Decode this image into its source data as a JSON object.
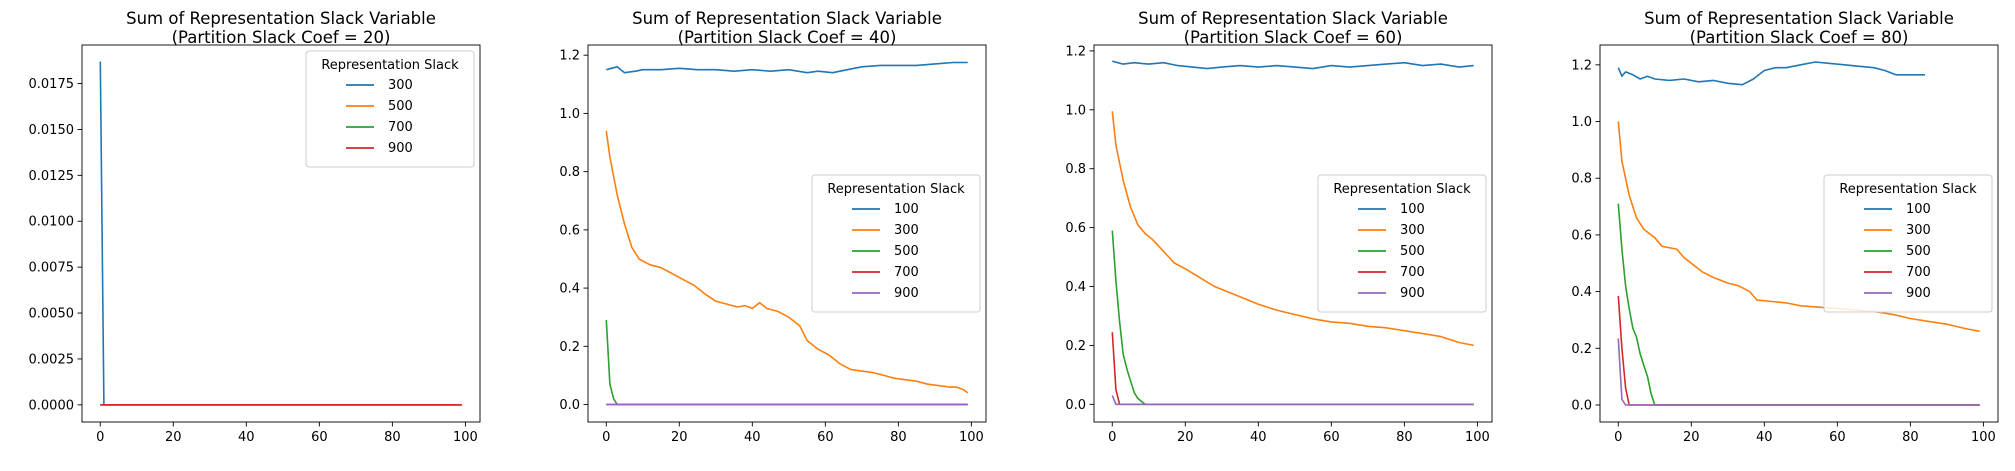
{
  "chart_data": [
    {
      "type": "line",
      "title": "Sum of Representation Slack Variable",
      "subtitle": "(Partition Slack Coef = 20)",
      "xlim": [
        -5,
        104
      ],
      "ylim": [
        -0.000935,
        0.0196
      ],
      "xticks": [
        0,
        20,
        40,
        60,
        80,
        100
      ],
      "yticks": [
        0.0,
        0.0025,
        0.005,
        0.0075,
        0.01,
        0.0125,
        0.015,
        0.0175
      ],
      "ytick_labels": [
        "0.0000",
        "0.0025",
        "0.0050",
        "0.0075",
        "0.0100",
        "0.0125",
        "0.0150",
        "0.0175"
      ],
      "legend": {
        "title": "Representation Slack",
        "position": "upper-right"
      },
      "series": [
        {
          "name": "300",
          "color": "#1f77b4",
          "points": [
            [
              0,
              0.0187
            ],
            [
              1,
              0.0
            ],
            [
              99,
              0.0
            ]
          ]
        },
        {
          "name": "500",
          "color": "#ff7f0e",
          "points": [
            [
              0,
              0.0
            ],
            [
              99,
              0.0
            ]
          ]
        },
        {
          "name": "700",
          "color": "#2ca02c",
          "points": [
            [
              0,
              0.0
            ],
            [
              99,
              0.0
            ]
          ]
        },
        {
          "name": "900",
          "color": "#d62728",
          "points": [
            [
              0,
              0.0
            ],
            [
              99,
              0.0
            ]
          ]
        }
      ]
    },
    {
      "type": "line",
      "title": "Sum of Representation Slack Variable",
      "subtitle": "(Partition Slack Coef = 40)",
      "xlim": [
        -5,
        104
      ],
      "ylim": [
        -0.06,
        1.235
      ],
      "xticks": [
        0,
        20,
        40,
        60,
        80,
        100
      ],
      "yticks": [
        0.0,
        0.2,
        0.4,
        0.6,
        0.8,
        1.0,
        1.2
      ],
      "ytick_labels": [
        "0.0",
        "0.2",
        "0.4",
        "0.6",
        "0.8",
        "1.0",
        "1.2"
      ],
      "legend": {
        "title": "Representation Slack",
        "position": "center-right"
      },
      "series": [
        {
          "name": "100",
          "color": "#1f77b4",
          "points": [
            [
              0,
              1.15
            ],
            [
              3,
              1.16
            ],
            [
              5,
              1.14
            ],
            [
              8,
              1.145
            ],
            [
              10,
              1.15
            ],
            [
              15,
              1.15
            ],
            [
              20,
              1.155
            ],
            [
              25,
              1.15
            ],
            [
              30,
              1.15
            ],
            [
              35,
              1.145
            ],
            [
              40,
              1.15
            ],
            [
              45,
              1.145
            ],
            [
              50,
              1.15
            ],
            [
              55,
              1.14
            ],
            [
              58,
              1.145
            ],
            [
              62,
              1.14
            ],
            [
              66,
              1.15
            ],
            [
              70,
              1.16
            ],
            [
              75,
              1.165
            ],
            [
              80,
              1.165
            ],
            [
              85,
              1.165
            ],
            [
              90,
              1.17
            ],
            [
              95,
              1.175
            ],
            [
              99,
              1.175
            ]
          ]
        },
        {
          "name": "300",
          "color": "#ff7f0e",
          "points": [
            [
              0,
              0.94
            ],
            [
              1,
              0.85
            ],
            [
              3,
              0.72
            ],
            [
              5,
              0.62
            ],
            [
              7,
              0.54
            ],
            [
              9,
              0.5
            ],
            [
              12,
              0.48
            ],
            [
              15,
              0.47
            ],
            [
              18,
              0.45
            ],
            [
              21,
              0.43
            ],
            [
              24,
              0.41
            ],
            [
              27,
              0.38
            ],
            [
              30,
              0.355
            ],
            [
              33,
              0.345
            ],
            [
              36,
              0.335
            ],
            [
              38,
              0.34
            ],
            [
              40,
              0.33
            ],
            [
              42,
              0.35
            ],
            [
              44,
              0.33
            ],
            [
              47,
              0.32
            ],
            [
              50,
              0.3
            ],
            [
              53,
              0.27
            ],
            [
              55,
              0.22
            ],
            [
              58,
              0.19
            ],
            [
              61,
              0.17
            ],
            [
              64,
              0.14
            ],
            [
              67,
              0.12
            ],
            [
              70,
              0.115
            ],
            [
              73,
              0.11
            ],
            [
              76,
              0.1
            ],
            [
              79,
              0.09
            ],
            [
              82,
              0.085
            ],
            [
              85,
              0.08
            ],
            [
              88,
              0.07
            ],
            [
              91,
              0.065
            ],
            [
              94,
              0.06
            ],
            [
              96,
              0.06
            ],
            [
              98,
              0.05
            ],
            [
              99,
              0.04
            ]
          ]
        },
        {
          "name": "500",
          "color": "#2ca02c",
          "points": [
            [
              0,
              0.29
            ],
            [
              1,
              0.07
            ],
            [
              2,
              0.02
            ],
            [
              3,
              0.0
            ],
            [
              99,
              0.0
            ]
          ]
        },
        {
          "name": "700",
          "color": "#d62728",
          "points": [
            [
              0,
              0.0
            ],
            [
              99,
              0.0
            ]
          ]
        },
        {
          "name": "900",
          "color": "#9467bd",
          "points": [
            [
              0,
              0.0
            ],
            [
              99,
              0.0
            ]
          ]
        }
      ]
    },
    {
      "type": "line",
      "title": "Sum of Representation Slack Variable",
      "subtitle": "(Partition Slack Coef = 60)",
      "xlim": [
        -5,
        104
      ],
      "ylim": [
        -0.06,
        1.22
      ],
      "xticks": [
        0,
        20,
        40,
        60,
        80,
        100
      ],
      "yticks": [
        0.0,
        0.2,
        0.4,
        0.6,
        0.8,
        1.0,
        1.2
      ],
      "ytick_labels": [
        "0.0",
        "0.2",
        "0.4",
        "0.6",
        "0.8",
        "1.0",
        "1.2"
      ],
      "legend": {
        "title": "Representation Slack",
        "position": "center-right"
      },
      "series": [
        {
          "name": "100",
          "color": "#1f77b4",
          "points": [
            [
              0,
              1.165
            ],
            [
              3,
              1.155
            ],
            [
              6,
              1.16
            ],
            [
              10,
              1.155
            ],
            [
              14,
              1.16
            ],
            [
              18,
              1.15
            ],
            [
              22,
              1.145
            ],
            [
              26,
              1.14
            ],
            [
              30,
              1.145
            ],
            [
              35,
              1.15
            ],
            [
              40,
              1.145
            ],
            [
              45,
              1.15
            ],
            [
              50,
              1.145
            ],
            [
              55,
              1.14
            ],
            [
              60,
              1.15
            ],
            [
              65,
              1.145
            ],
            [
              70,
              1.15
            ],
            [
              75,
              1.155
            ],
            [
              80,
              1.16
            ],
            [
              85,
              1.15
            ],
            [
              90,
              1.155
            ],
            [
              95,
              1.145
            ],
            [
              99,
              1.15
            ]
          ]
        },
        {
          "name": "300",
          "color": "#ff7f0e",
          "points": [
            [
              0,
              0.995
            ],
            [
              1,
              0.88
            ],
            [
              3,
              0.76
            ],
            [
              5,
              0.67
            ],
            [
              7,
              0.61
            ],
            [
              9,
              0.58
            ],
            [
              11,
              0.56
            ],
            [
              14,
              0.52
            ],
            [
              17,
              0.48
            ],
            [
              20,
              0.46
            ],
            [
              24,
              0.43
            ],
            [
              28,
              0.4
            ],
            [
              32,
              0.38
            ],
            [
              36,
              0.36
            ],
            [
              40,
              0.34
            ],
            [
              45,
              0.32
            ],
            [
              50,
              0.305
            ],
            [
              55,
              0.29
            ],
            [
              60,
              0.28
            ],
            [
              65,
              0.275
            ],
            [
              70,
              0.265
            ],
            [
              75,
              0.26
            ],
            [
              80,
              0.25
            ],
            [
              85,
              0.24
            ],
            [
              90,
              0.23
            ],
            [
              95,
              0.21
            ],
            [
              99,
              0.2
            ]
          ]
        },
        {
          "name": "500",
          "color": "#2ca02c",
          "points": [
            [
              0,
              0.59
            ],
            [
              1,
              0.42
            ],
            [
              2,
              0.28
            ],
            [
              3,
              0.17
            ],
            [
              4,
              0.12
            ],
            [
              5,
              0.08
            ],
            [
              6,
              0.04
            ],
            [
              7,
              0.02
            ],
            [
              9,
              0.0
            ],
            [
              99,
              0.0
            ]
          ]
        },
        {
          "name": "700",
          "color": "#d62728",
          "points": [
            [
              0,
              0.245
            ],
            [
              1,
              0.05
            ],
            [
              2,
              0.0
            ],
            [
              99,
              0.0
            ]
          ]
        },
        {
          "name": "900",
          "color": "#9467bd",
          "points": [
            [
              0,
              0.03
            ],
            [
              1,
              0.0
            ],
            [
              99,
              0.0
            ]
          ]
        }
      ]
    },
    {
      "type": "line",
      "title": "Sum of Representation Slack Variable",
      "subtitle": "(Partition Slack Coef = 80)",
      "xlim": [
        -5,
        104
      ],
      "ylim": [
        -0.06,
        1.27
      ],
      "xticks": [
        0,
        20,
        40,
        60,
        80,
        100
      ],
      "yticks": [
        0.0,
        0.2,
        0.4,
        0.6,
        0.8,
        1.0,
        1.2
      ],
      "ytick_labels": [
        "0.0",
        "0.2",
        "0.4",
        "0.6",
        "0.8",
        "1.0",
        "1.2"
      ],
      "legend": {
        "title": "Representation Slack",
        "position": "center-right"
      },
      "series": [
        {
          "name": "100",
          "color": "#1f77b4",
          "points": [
            [
              0,
              1.19
            ],
            [
              1,
              1.16
            ],
            [
              2,
              1.175
            ],
            [
              4,
              1.165
            ],
            [
              6,
              1.15
            ],
            [
              8,
              1.16
            ],
            [
              10,
              1.15
            ],
            [
              14,
              1.145
            ],
            [
              18,
              1.15
            ],
            [
              22,
              1.14
            ],
            [
              26,
              1.145
            ],
            [
              30,
              1.135
            ],
            [
              34,
              1.13
            ],
            [
              37,
              1.15
            ],
            [
              40,
              1.18
            ],
            [
              43,
              1.19
            ],
            [
              46,
              1.19
            ],
            [
              50,
              1.2
            ],
            [
              54,
              1.21
            ],
            [
              58,
              1.205
            ],
            [
              62,
              1.2
            ],
            [
              66,
              1.195
            ],
            [
              70,
              1.19
            ],
            [
              73,
              1.18
            ],
            [
              76,
              1.165
            ],
            [
              80,
              1.165
            ],
            [
              84,
              1.165
            ]
          ]
        },
        {
          "name": "300",
          "color": "#ff7f0e",
          "points": [
            [
              0,
              1.0
            ],
            [
              1,
              0.86
            ],
            [
              3,
              0.74
            ],
            [
              5,
              0.66
            ],
            [
              7,
              0.62
            ],
            [
              10,
              0.59
            ],
            [
              12,
              0.56
            ],
            [
              16,
              0.55
            ],
            [
              18,
              0.52
            ],
            [
              20,
              0.5
            ],
            [
              23,
              0.47
            ],
            [
              26,
              0.45
            ],
            [
              30,
              0.43
            ],
            [
              33,
              0.42
            ],
            [
              36,
              0.4
            ],
            [
              38,
              0.37
            ],
            [
              42,
              0.365
            ],
            [
              46,
              0.36
            ],
            [
              50,
              0.35
            ],
            [
              55,
              0.345
            ],
            [
              60,
              0.34
            ],
            [
              65,
              0.335
            ],
            [
              70,
              0.33
            ],
            [
              75,
              0.32
            ],
            [
              80,
              0.305
            ],
            [
              85,
              0.295
            ],
            [
              90,
              0.285
            ],
            [
              95,
              0.27
            ],
            [
              99,
              0.26
            ]
          ]
        },
        {
          "name": "500",
          "color": "#2ca02c",
          "points": [
            [
              0,
              0.71
            ],
            [
              1,
              0.55
            ],
            [
              2,
              0.42
            ],
            [
              3,
              0.34
            ],
            [
              4,
              0.27
            ],
            [
              5,
              0.24
            ],
            [
              6,
              0.18
            ],
            [
              7,
              0.14
            ],
            [
              8,
              0.1
            ],
            [
              9,
              0.04
            ],
            [
              10,
              0.0
            ],
            [
              99,
              0.0
            ]
          ]
        },
        {
          "name": "700",
          "color": "#d62728",
          "points": [
            [
              0,
              0.385
            ],
            [
              1,
              0.2
            ],
            [
              2,
              0.06
            ],
            [
              3,
              0.0
            ],
            [
              99,
              0.0
            ]
          ]
        },
        {
          "name": "900",
          "color": "#9467bd",
          "points": [
            [
              0,
              0.235
            ],
            [
              1,
              0.02
            ],
            [
              2,
              0.0
            ],
            [
              99,
              0.0
            ]
          ]
        }
      ]
    }
  ]
}
